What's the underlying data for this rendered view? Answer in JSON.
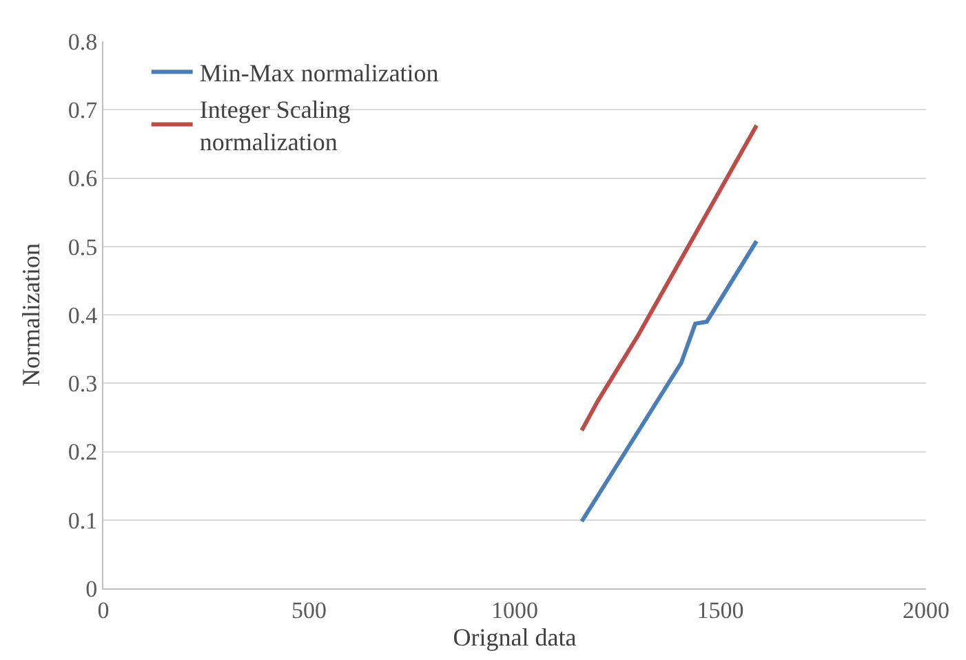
{
  "chart_data": {
    "type": "line",
    "xlabel": "Orignal data",
    "ylabel": "Normalization",
    "xlim": [
      0,
      2000
    ],
    "xticks": [
      0,
      500,
      1000,
      1500,
      2000
    ],
    "ylim": [
      0,
      0.8
    ],
    "yticks": [
      0,
      0.1,
      0.2,
      0.3,
      0.4,
      0.5,
      0.6,
      0.7,
      0.8
    ],
    "grid": "y",
    "legend": "top left",
    "marker": "none",
    "line_style": "solid",
    "series": [
      {
        "name": "Min-Max normalization",
        "color": "#4a7ebb",
        "x": [
          1163,
          1405,
          1439,
          1467,
          1588
        ],
        "values": [
          0.098,
          0.33,
          0.387,
          0.39,
          0.508
        ]
      },
      {
        "name": "Integer Scaling\nnormalization",
        "color": "#be4b48",
        "x": [
          1163,
          1202,
          1300,
          1588
        ],
        "values": [
          0.231,
          0.274,
          0.37,
          0.677
        ]
      }
    ]
  }
}
